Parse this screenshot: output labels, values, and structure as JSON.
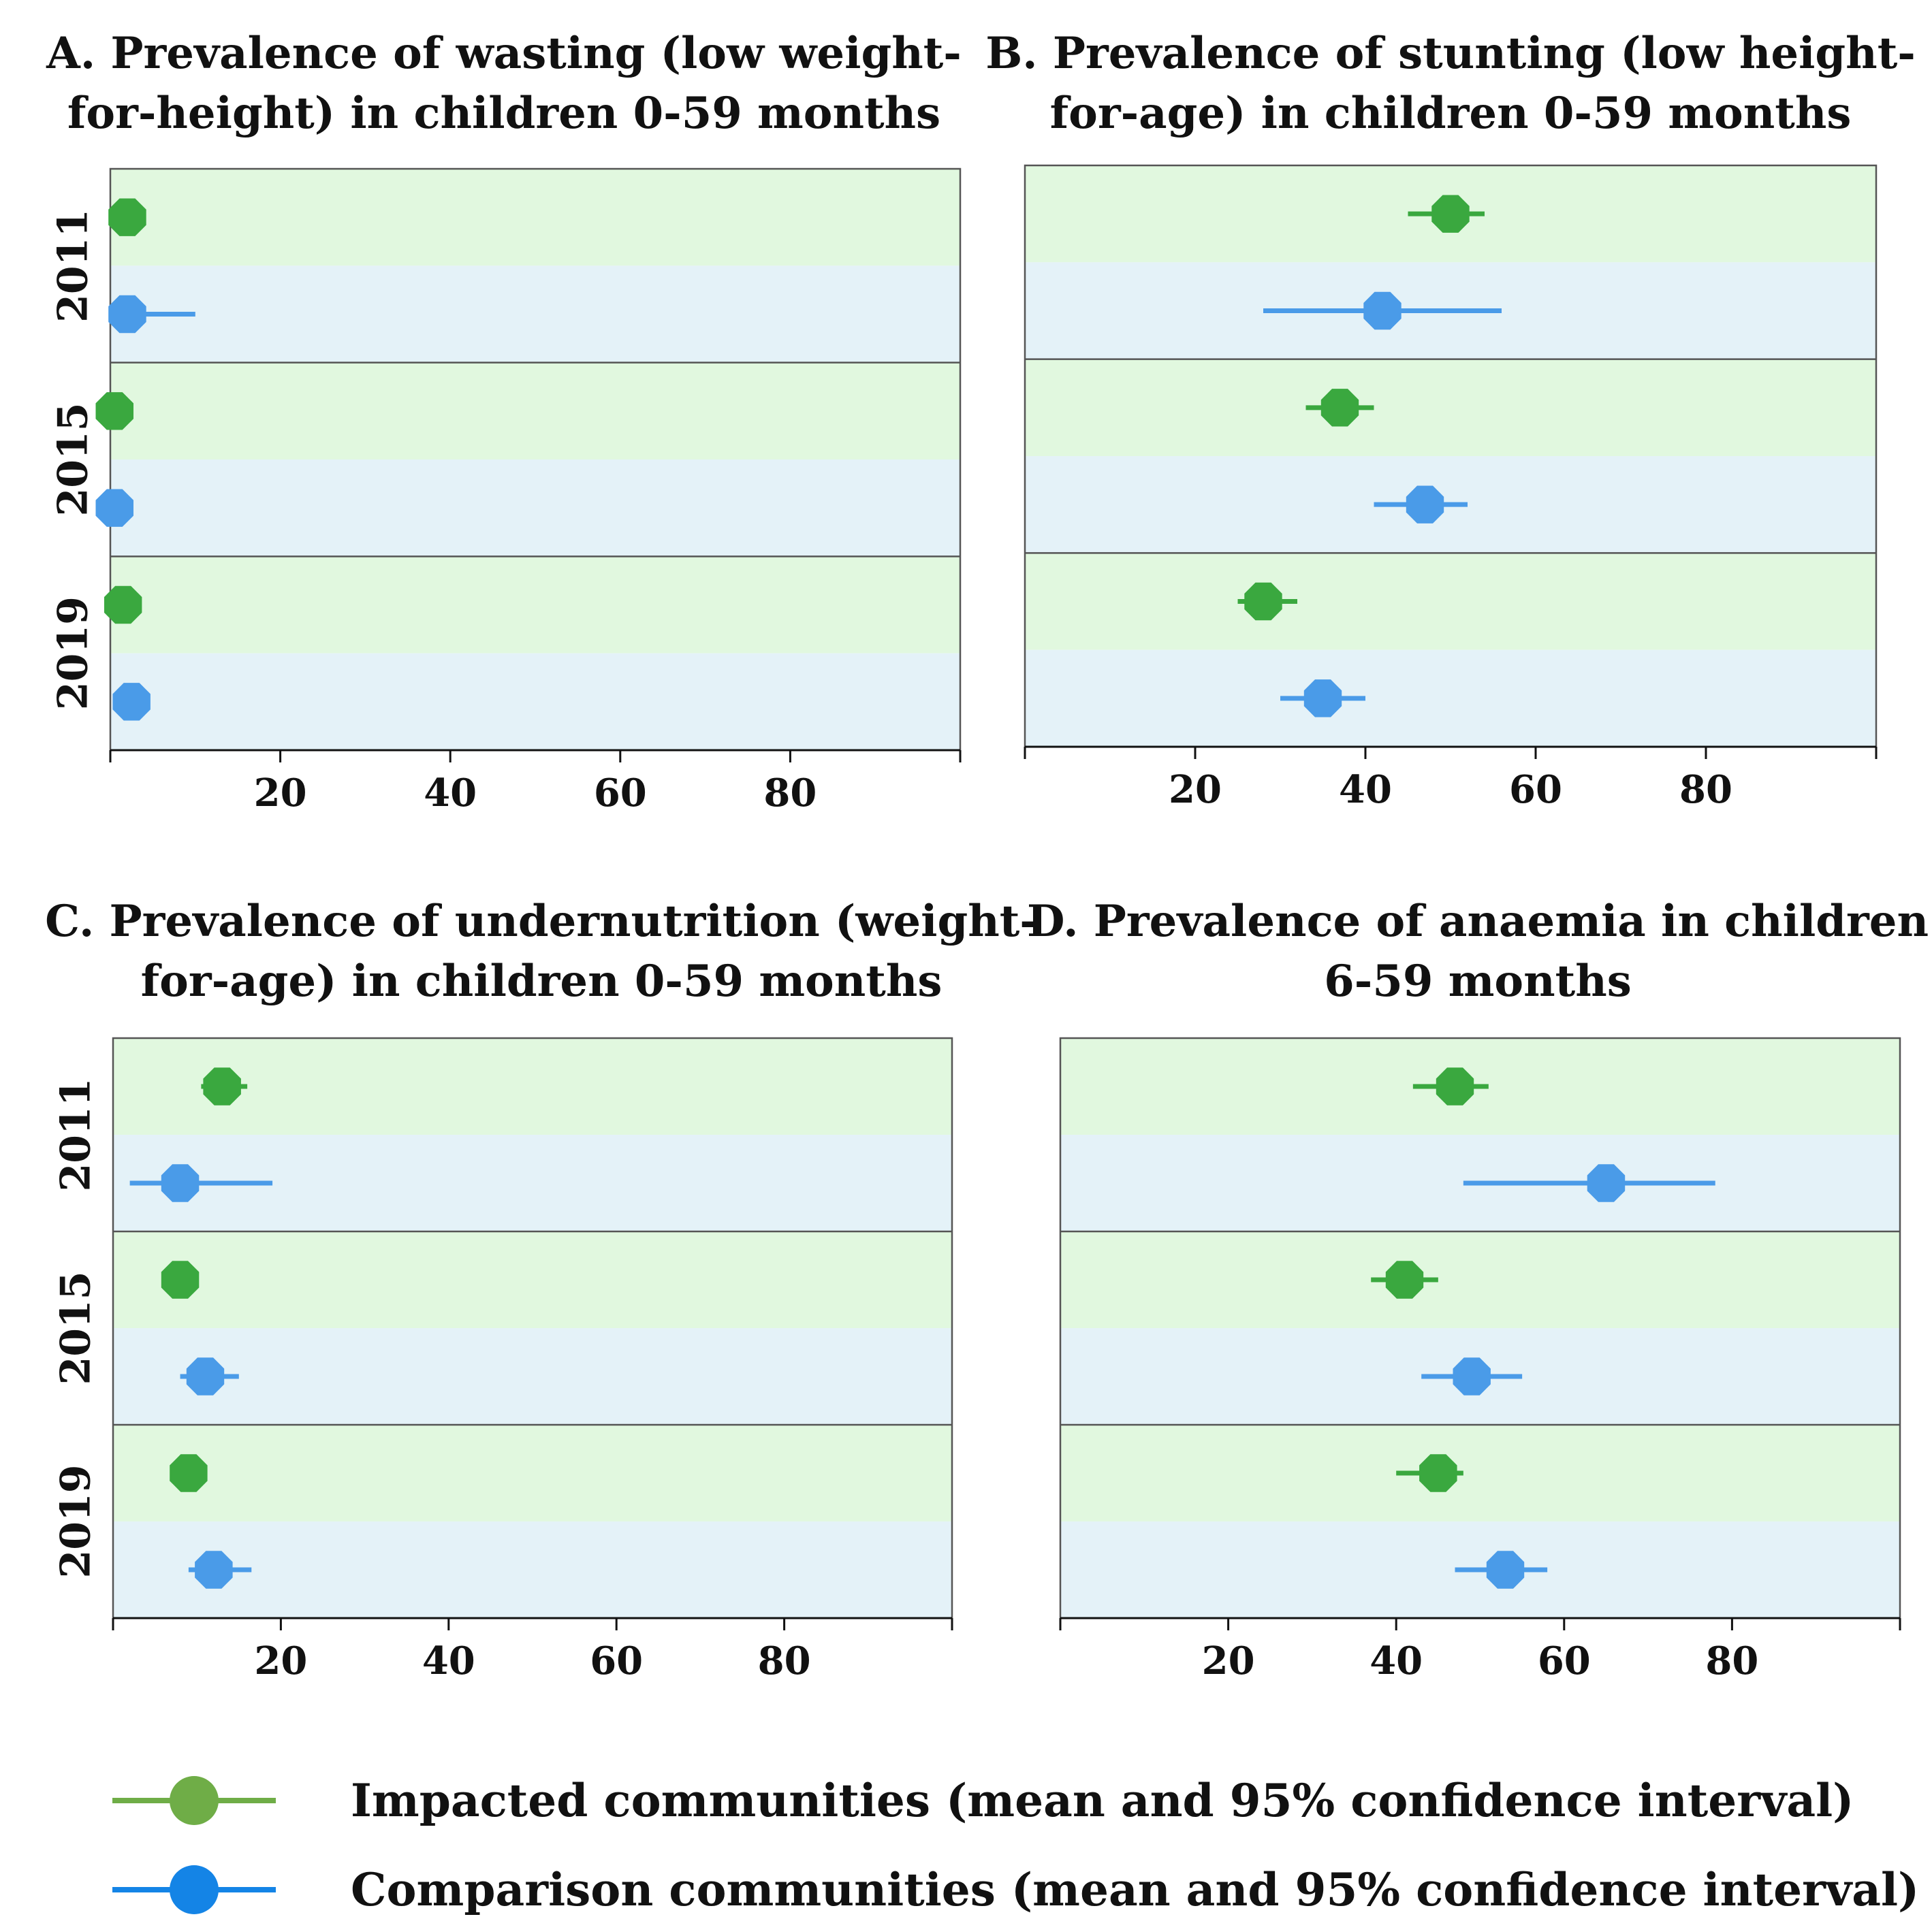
{
  "chart_data": [
    {
      "type": "forest",
      "panel": "A",
      "title_lines": [
        "A. Prevalence of wasting (low weight-",
        "for-height) in children 0-59 months"
      ],
      "xlim": [
        0,
        100
      ],
      "xticks": [
        20,
        40,
        60,
        80
      ],
      "years": [
        "2011",
        "2015",
        "2019"
      ],
      "series": [
        {
          "name": "Impacted",
          "values": [
            2,
            0.5,
            1.5
          ],
          "ci_low": [
            0.8,
            0,
            0.5
          ],
          "ci_high": [
            3.5,
            1.8,
            2.8
          ]
        },
        {
          "name": "Comparison",
          "values": [
            2,
            0.5,
            2.5
          ],
          "ci_low": [
            0.8,
            0,
            1.5
          ],
          "ci_high": [
            10,
            1.8,
            3.5
          ]
        }
      ]
    },
    {
      "type": "forest",
      "panel": "B",
      "title_lines": [
        "B. Prevalence of stunting (low height-",
        "for-age) in children 0-59 months"
      ],
      "xlim": [
        0,
        100
      ],
      "xticks": [
        20,
        40,
        60,
        80
      ],
      "years": [
        "2011",
        "2015",
        "2019"
      ],
      "series": [
        {
          "name": "Impacted",
          "values": [
            50,
            37,
            28
          ],
          "ci_low": [
            45,
            33,
            25
          ],
          "ci_high": [
            54,
            41,
            32
          ]
        },
        {
          "name": "Comparison",
          "values": [
            42,
            47,
            35
          ],
          "ci_low": [
            28,
            41,
            30
          ],
          "ci_high": [
            56,
            52,
            40
          ]
        }
      ]
    },
    {
      "type": "forest",
      "panel": "C",
      "title_lines": [
        "C. Prevalence of undernutrition (weight-",
        "for-age) in children 0-59 months"
      ],
      "xlim": [
        0,
        100
      ],
      "xticks": [
        20,
        40,
        60,
        80
      ],
      "years": [
        "2011",
        "2015",
        "2019"
      ],
      "series": [
        {
          "name": "Impacted",
          "values": [
            13,
            8,
            9
          ],
          "ci_low": [
            10.5,
            6.5,
            7.5
          ],
          "ci_high": [
            16,
            9.5,
            10.5
          ]
        },
        {
          "name": "Comparison",
          "values": [
            8,
            11,
            12
          ],
          "ci_low": [
            2,
            8,
            9
          ],
          "ci_high": [
            19,
            15,
            16.5
          ]
        }
      ]
    },
    {
      "type": "forest",
      "panel": "D",
      "title_lines": [
        "D. Prevalence of anaemia in children",
        "6-59 months"
      ],
      "xlim": [
        0,
        100
      ],
      "xticks": [
        20,
        40,
        60,
        80
      ],
      "years": [
        "2011",
        "2015",
        "2019"
      ],
      "series": [
        {
          "name": "Impacted",
          "values": [
            47,
            41,
            45
          ],
          "ci_low": [
            42,
            37,
            40
          ],
          "ci_high": [
            51,
            45,
            48
          ]
        },
        {
          "name": "Comparison",
          "values": [
            65,
            49,
            53
          ],
          "ci_low": [
            48,
            43,
            47
          ],
          "ci_high": [
            78,
            55,
            58
          ]
        }
      ]
    }
  ],
  "legend": [
    {
      "label": "Impacted communities (mean and 95% confidence interval)",
      "color": "#6fad47"
    },
    {
      "label": "Comparison communities (mean and 95% confidence interval)",
      "color": "#1484e6"
    }
  ],
  "colors": {
    "impacted": "#3aa83f",
    "comparison": "#4a9be8",
    "band_impacted": "#e1f8df",
    "band_comparison": "#e4f2f8"
  }
}
